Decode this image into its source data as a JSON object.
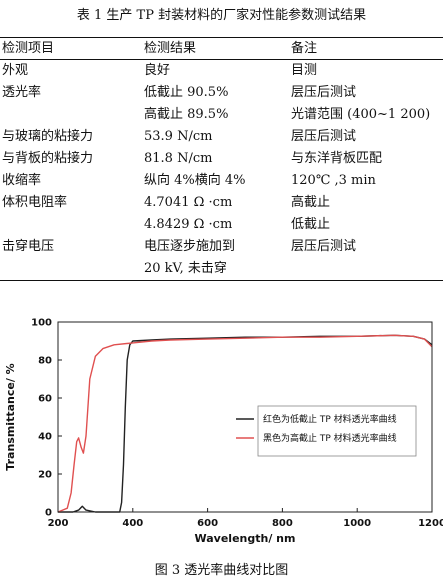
{
  "table": {
    "caption": "表 1  生产 TP 封装材料的厂家对性能参数测试结果",
    "headers": [
      "检测项目",
      "检测结果",
      "备注"
    ],
    "rows": [
      [
        "外观",
        "良好",
        "目测"
      ],
      [
        "透光率",
        "低截止 90.5%",
        "层压后测试"
      ],
      [
        "",
        "高截止 89.5%",
        "光谱范围 (400~1 200)"
      ],
      [
        "与玻璃的粘接力",
        "53.9 N/cm",
        "层压后测试"
      ],
      [
        "与背板的粘接力",
        "81.8 N/cm",
        "与东洋背板匹配"
      ],
      [
        "收缩率",
        "纵向 4%横向 4%",
        "120℃ ,3 min"
      ],
      [
        "体积电阻率",
        "4.7041 Ω ·cm",
        "高截止"
      ],
      [
        "",
        "4.8429 Ω ·cm",
        "低截止"
      ],
      [
        "击穿电压",
        "电压逐步施加到",
        "层压后测试"
      ],
      [
        "",
        "20 kV, 未击穿",
        ""
      ]
    ]
  },
  "figure": {
    "caption": "图 3  透光率曲线对比图"
  },
  "chart_data": {
    "type": "line",
    "xlabel": "Wavelength/ nm",
    "ylabel": "Transmittance/ %",
    "xlim": [
      200,
      1200
    ],
    "ylim": [
      0,
      100
    ],
    "xticks": [
      "200",
      "400",
      "600",
      "800",
      "1000",
      "1200"
    ],
    "yticks": [
      "0",
      "20",
      "40",
      "60",
      "80",
      "100"
    ],
    "grid": false,
    "legend_position": "center-right",
    "series": [
      {
        "name": "红色为低截止 TP 材料透光率曲线",
        "color": "#222222",
        "x": [
          200,
          240,
          255,
          265,
          275,
          300,
          340,
          365,
          370,
          375,
          380,
          385,
          392,
          400,
          450,
          500,
          600,
          700,
          800,
          900,
          1000,
          1100,
          1150,
          1180,
          1200
        ],
        "y": [
          0,
          0,
          1,
          3,
          1,
          0,
          0,
          0,
          5,
          25,
          55,
          80,
          88,
          90,
          90.5,
          91,
          91.5,
          92,
          92,
          92.5,
          92.5,
          93,
          92.5,
          91,
          88
        ]
      },
      {
        "name": "黑色为高截止 TP 材料透光率曲线",
        "color": "#e05050",
        "x": [
          200,
          225,
          235,
          243,
          250,
          255,
          262,
          268,
          275,
          285,
          300,
          320,
          350,
          400,
          450,
          500,
          600,
          700,
          800,
          900,
          1000,
          1100,
          1150,
          1180,
          1200
        ],
        "y": [
          0,
          2,
          10,
          25,
          37,
          39,
          34,
          31,
          40,
          70,
          82,
          86,
          88,
          89,
          90,
          90.5,
          91,
          91.5,
          92,
          92,
          92.5,
          93,
          92.5,
          91,
          87
        ]
      }
    ]
  }
}
